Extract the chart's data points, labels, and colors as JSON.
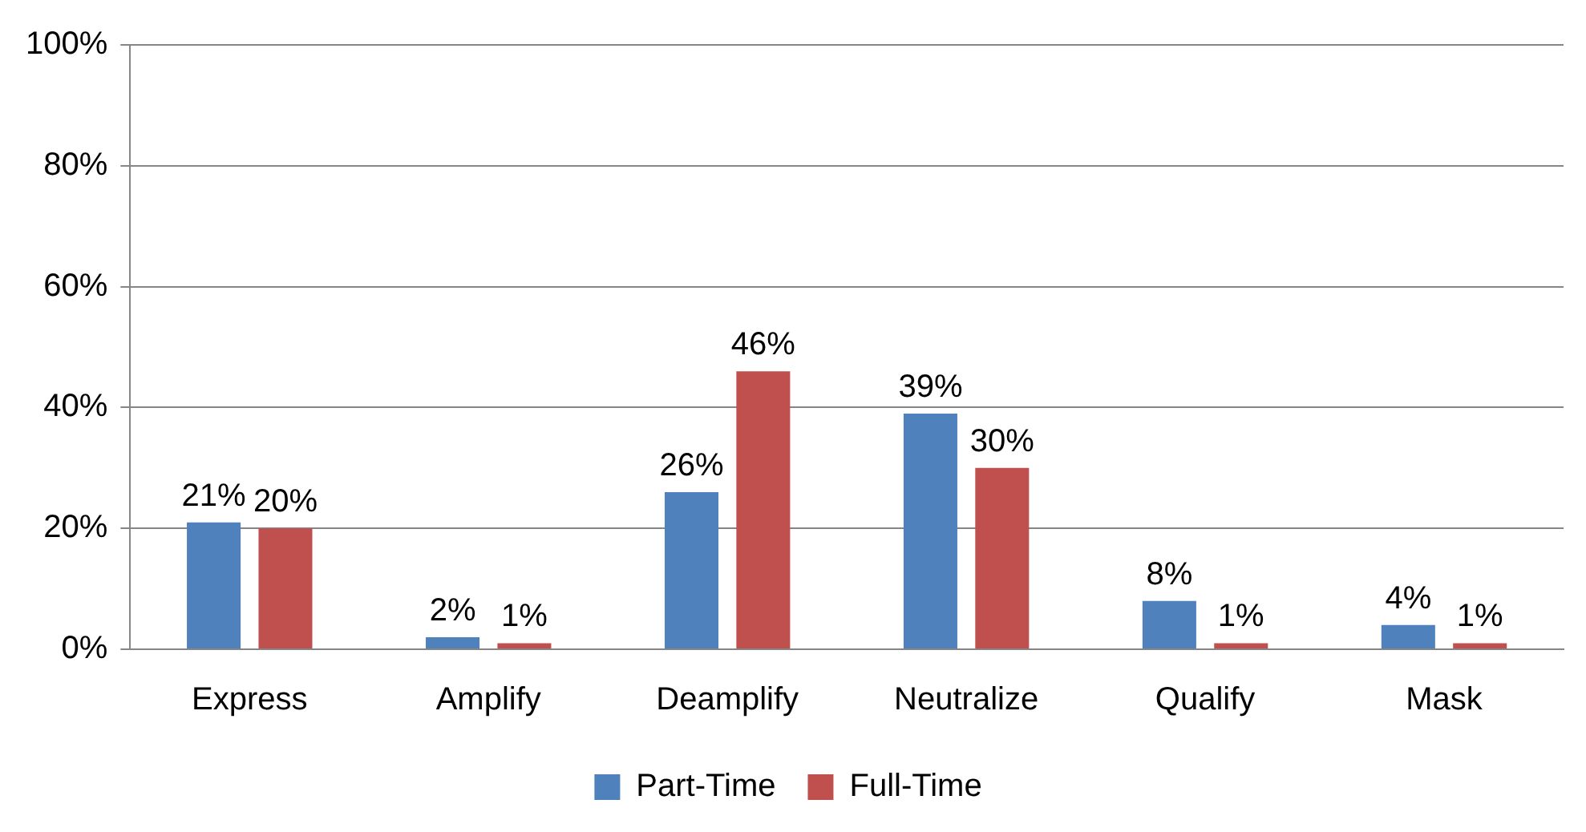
{
  "chart_data": {
    "type": "bar",
    "categories": [
      "Express",
      "Amplify",
      "Deamplify",
      "Neutralize",
      "Qualify",
      "Mask"
    ],
    "series": [
      {
        "name": "Part-Time",
        "color": "#4f81bd",
        "values": [
          21,
          2,
          26,
          39,
          8,
          4
        ],
        "value_labels": [
          "21%",
          "2%",
          "26%",
          "39%",
          "8%",
          "4%"
        ]
      },
      {
        "name": "Full-Time",
        "color": "#c0504d",
        "values": [
          20,
          1,
          46,
          30,
          1,
          1
        ],
        "value_labels": [
          "20%",
          "1%",
          "46%",
          "30%",
          "1%",
          "1%"
        ]
      }
    ],
    "ylim": [
      0,
      100
    ],
    "yticks": [
      {
        "value": 0,
        "label": "0%"
      },
      {
        "value": 20,
        "label": "20%"
      },
      {
        "value": 40,
        "label": "40%"
      },
      {
        "value": 60,
        "label": "60%"
      },
      {
        "value": 80,
        "label": "80%"
      },
      {
        "value": 100,
        "label": "100%"
      }
    ],
    "grid": "y",
    "legend": "bottom"
  }
}
